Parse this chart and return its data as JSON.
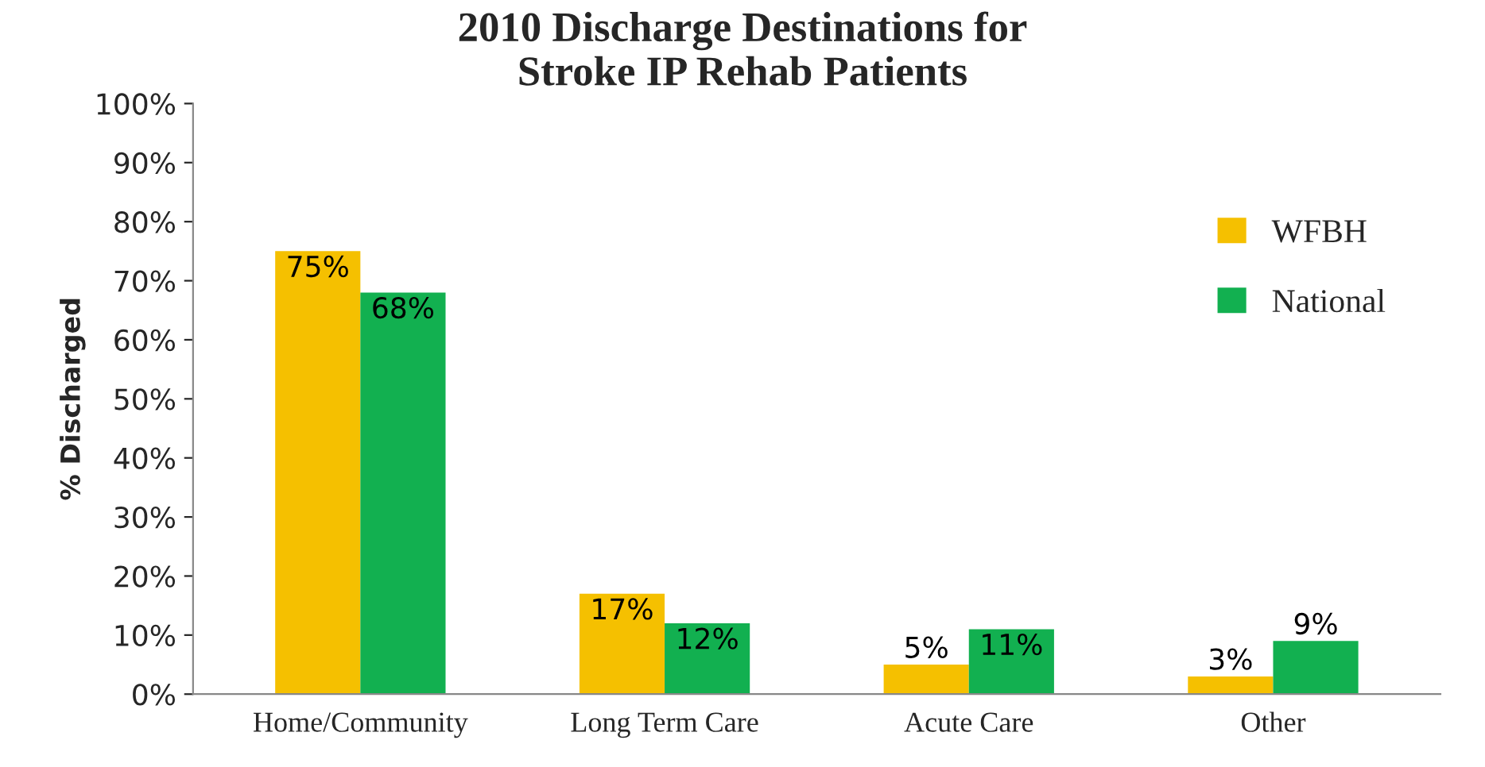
{
  "chart_data": {
    "type": "bar",
    "title": "2010 Discharge Destinations for\nStroke IP Rehab Patients",
    "ylabel": "% Discharged",
    "categories": [
      "Home/Community",
      "Long Term Care",
      "Acute Care",
      "Other"
    ],
    "series": [
      {
        "name": "WFBH",
        "color": "#f5c000",
        "values": [
          75,
          17,
          5,
          3
        ],
        "value_labels": [
          "75%",
          "17%",
          "5%",
          "3%"
        ]
      },
      {
        "name": "National",
        "color": "#12b050",
        "values": [
          68,
          12,
          11,
          9
        ],
        "value_labels": [
          "68%",
          "12%",
          "11%",
          "9%"
        ]
      }
    ],
    "ylim": [
      0,
      100
    ],
    "yticks": [
      {
        "value": 0,
        "label": "0%"
      },
      {
        "value": 10,
        "label": "10%"
      },
      {
        "value": 20,
        "label": "20%"
      },
      {
        "value": 30,
        "label": "30%"
      },
      {
        "value": 40,
        "label": "40%"
      },
      {
        "value": 50,
        "label": "50%"
      },
      {
        "value": 60,
        "label": "60%"
      },
      {
        "value": 70,
        "label": "70%"
      },
      {
        "value": 80,
        "label": "80%"
      },
      {
        "value": 90,
        "label": "90%"
      },
      {
        "value": 100,
        "label": "100%"
      }
    ],
    "legend": "right",
    "grid": false
  }
}
